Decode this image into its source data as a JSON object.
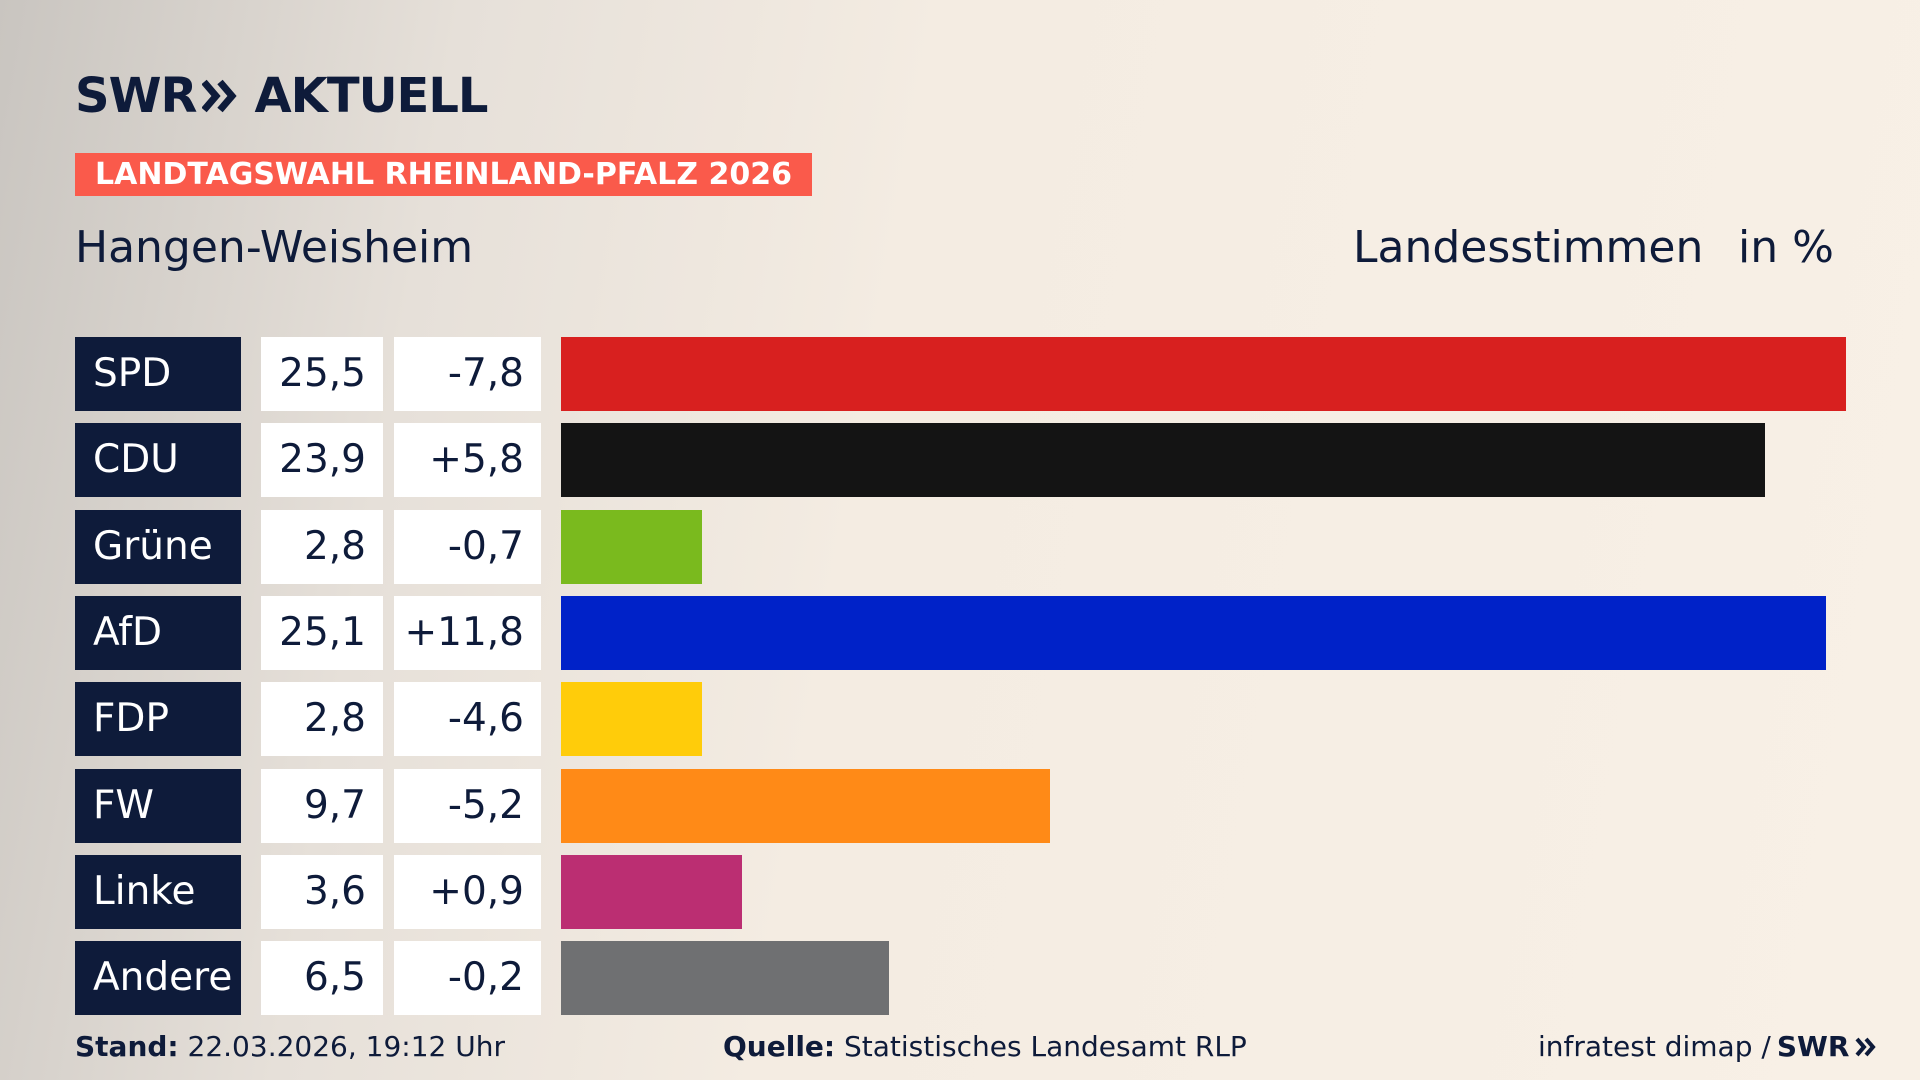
{
  "header": {
    "logo_left": "SWR",
    "logo_right": "AKTUELL"
  },
  "chart_data": {
    "type": "bar",
    "title": "LANDTAGSWAHL RHEINLAND-PFALZ 2026",
    "subtitle": "Hangen-Weisheim",
    "measure": "Landesstimmen",
    "unit": "in %",
    "categories": [
      "SPD",
      "CDU",
      "Grüne",
      "AfD",
      "FDP",
      "FW",
      "Linke",
      "Andere"
    ],
    "values": [
      25.5,
      23.9,
      2.8,
      25.1,
      2.8,
      9.7,
      3.6,
      6.5
    ],
    "value_labels": [
      "25,5",
      "23,9",
      "2,8",
      "25,1",
      "2,8",
      "9,7",
      "3,6",
      "6,5"
    ],
    "changes": [
      -7.8,
      5.8,
      -0.7,
      11.8,
      -4.6,
      -5.2,
      0.9,
      -0.2
    ],
    "change_labels": [
      "-7,8",
      "+5,8",
      "-0,7",
      "+11,8",
      "-4,6",
      "-5,2",
      "+0,9",
      "-0,2"
    ],
    "colors": [
      "#d8201f",
      "#141414",
      "#7aba1e",
      "#0022c8",
      "#ffcc0a",
      "#ff8a17",
      "#bb2e72",
      "#6f7072"
    ]
  },
  "footer": {
    "stand_label": "Stand:",
    "stand": "22.03.2026, 19:12 Uhr",
    "source_label": "Quelle:",
    "source": "Statistisches Landesamt RLP",
    "credit": "infratest dimap /",
    "credit_logo": "SWR"
  }
}
